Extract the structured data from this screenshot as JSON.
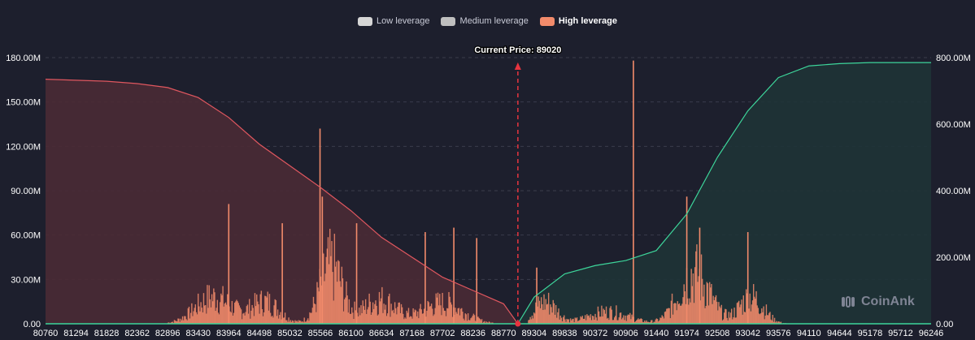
{
  "legend": {
    "items": [
      {
        "label": "Low leverage",
        "color": "#d6d6d6"
      },
      {
        "label": "Medium leverage",
        "color": "#bfbfbf"
      },
      {
        "label": "High leverage",
        "color": "#f28b6b"
      }
    ]
  },
  "watermark": {
    "text": "CoinAnk"
  },
  "chart_data": {
    "type": "bar",
    "title": "",
    "current_price": {
      "label": "Current Price: ",
      "value": 89020
    },
    "x_ticks": [
      "80760",
      "81294",
      "81828",
      "82362",
      "82896",
      "83430",
      "83964",
      "84498",
      "85032",
      "85566",
      "86100",
      "86634",
      "87168",
      "87702",
      "88236",
      "88770",
      "89304",
      "89838",
      "90372",
      "90906",
      "91440",
      "91974",
      "92508",
      "93042",
      "93576",
      "94110",
      "94644",
      "95178",
      "95712",
      "96246"
    ],
    "x_range": [
      80760,
      96246
    ],
    "y_left": {
      "ticks": [
        "0.00",
        "30.00M",
        "60.00M",
        "90.00M",
        "120.00M",
        "150.00M",
        "180.00M"
      ],
      "range": [
        0,
        180
      ]
    },
    "y_right": {
      "ticks": [
        "0.00",
        "200.00M",
        "400.00M",
        "600.00M",
        "800.00M"
      ],
      "range": [
        0,
        800
      ]
    },
    "grid": true,
    "legend_position": "top-center",
    "colors": {
      "bars": "#f28b6b",
      "short_line": "#e0575f",
      "short_fill": "#4a2a35",
      "long_line": "#3dd69b",
      "long_fill": "#1f3336",
      "current_line": "#e8343f",
      "grid": "#3a3d4c",
      "axis_text": "#ffffff"
    },
    "short_cumulative": [
      [
        80760,
        735
      ],
      [
        81294,
        732
      ],
      [
        81828,
        729
      ],
      [
        82362,
        722
      ],
      [
        82896,
        710
      ],
      [
        83430,
        680
      ],
      [
        83964,
        620
      ],
      [
        84498,
        540
      ],
      [
        85032,
        475
      ],
      [
        85566,
        410
      ],
      [
        86100,
        340
      ],
      [
        86634,
        260
      ],
      [
        87168,
        200
      ],
      [
        87702,
        140
      ],
      [
        88236,
        100
      ],
      [
        88770,
        60
      ],
      [
        89020,
        0
      ]
    ],
    "long_cumulative": [
      [
        89020,
        0
      ],
      [
        89304,
        80
      ],
      [
        89838,
        150
      ],
      [
        90372,
        175
      ],
      [
        90906,
        190
      ],
      [
        91440,
        220
      ],
      [
        91974,
        330
      ],
      [
        92508,
        500
      ],
      [
        93042,
        640
      ],
      [
        93576,
        740
      ],
      [
        94110,
        775
      ],
      [
        94644,
        782
      ],
      [
        95178,
        785
      ],
      [
        96246,
        785
      ]
    ],
    "bar_profile": [
      {
        "center": 83700,
        "width": 450,
        "peak": 22
      },
      {
        "center": 84600,
        "width": 350,
        "peak": 18
      },
      {
        "center": 85750,
        "width": 280,
        "peak": 48
      },
      {
        "center": 86600,
        "width": 400,
        "peak": 20
      },
      {
        "center": 87700,
        "width": 500,
        "peak": 17
      },
      {
        "center": 89500,
        "width": 280,
        "peak": 18
      },
      {
        "center": 90600,
        "width": 500,
        "peak": 10
      },
      {
        "center": 92100,
        "width": 380,
        "peak": 42
      },
      {
        "center": 93100,
        "width": 300,
        "peak": 22
      }
    ],
    "bar_spikes": [
      {
        "x": 83964,
        "value": 81
      },
      {
        "x": 85560,
        "value": 132
      },
      {
        "x": 85600,
        "value": 86
      },
      {
        "x": 84900,
        "value": 68
      },
      {
        "x": 86200,
        "value": 68
      },
      {
        "x": 87400,
        "value": 62
      },
      {
        "x": 87900,
        "value": 65
      },
      {
        "x": 88300,
        "value": 58
      },
      {
        "x": 91040,
        "value": 178
      },
      {
        "x": 91974,
        "value": 86
      },
      {
        "x": 92200,
        "value": 65
      },
      {
        "x": 93042,
        "value": 62
      },
      {
        "x": 89350,
        "value": 38
      }
    ],
    "bar_range": [
      82900,
      93950
    ]
  }
}
